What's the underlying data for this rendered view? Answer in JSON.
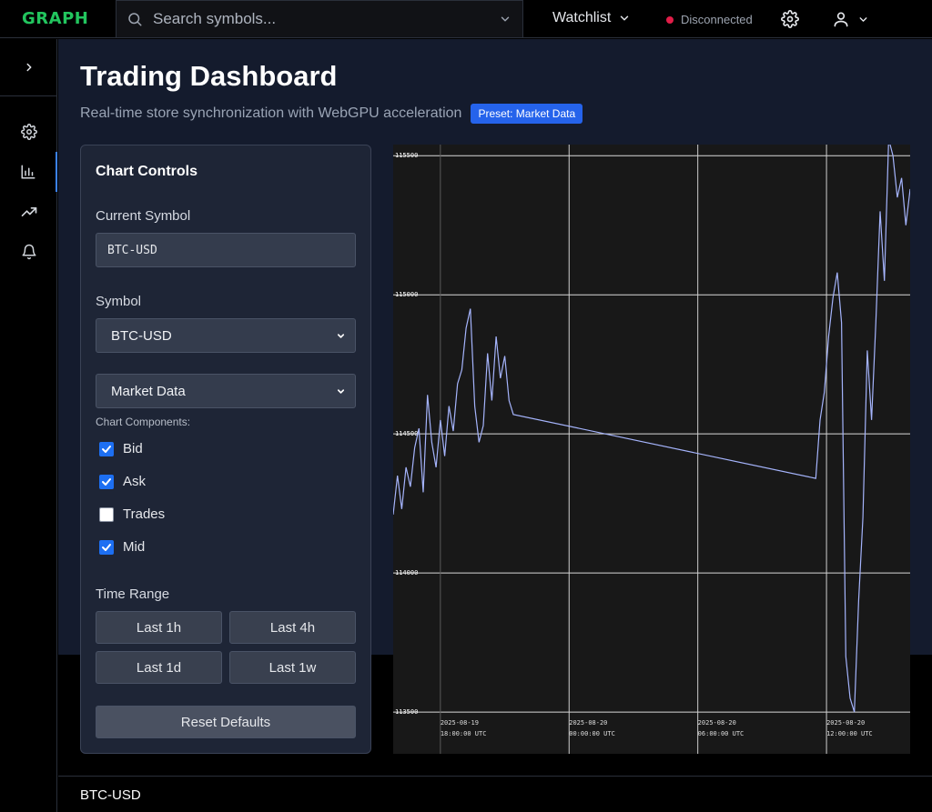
{
  "app": {
    "logo": "GRAPH"
  },
  "topbar": {
    "search_placeholder": "Search symbols...",
    "watchlist_label": "Watchlist",
    "connection_status": "Disconnected",
    "status_color": "#e11d48"
  },
  "page": {
    "title": "Trading Dashboard",
    "subtitle": "Real-time store synchronization with WebGPU acceleration",
    "preset_badge": "Preset: Market Data"
  },
  "controls": {
    "panel_title": "Chart Controls",
    "current_symbol_label": "Current Symbol",
    "current_symbol_value": "BTC-USD",
    "symbol_label": "Symbol",
    "symbol_selected": "BTC-USD",
    "preset_selected": "Market Data",
    "components_label": "Chart Components:",
    "components": [
      {
        "label": "Bid",
        "checked": true
      },
      {
        "label": "Ask",
        "checked": true
      },
      {
        "label": "Trades",
        "checked": false
      },
      {
        "label": "Mid",
        "checked": true
      }
    ],
    "time_range_label": "Time Range",
    "time_ranges": [
      "Last 1h",
      "Last 4h",
      "Last 1d",
      "Last 1w"
    ],
    "reset_label": "Reset Defaults"
  },
  "footer": {
    "symbol": "BTC-USD"
  },
  "chart_data": {
    "type": "line",
    "y_tick_labels": [
      "115500",
      "115000",
      "114500",
      "114000",
      "113500"
    ],
    "y_ticks": [
      115500,
      115000,
      114500,
      114000,
      113500
    ],
    "ylim": [
      113350,
      115540
    ],
    "x_tick_labels": [
      [
        "2025-08-19",
        "18:00:00 UTC"
      ],
      [
        "2025-08-20",
        "00:00:00 UTC"
      ],
      [
        "2025-08-20",
        "06:00:00 UTC"
      ],
      [
        "2025-08-20",
        "12:00:00 UTC"
      ]
    ],
    "x_ticks": [
      0,
      6,
      12,
      18
    ],
    "xlim": [
      -2.2,
      21.9
    ],
    "grid": true,
    "series": [
      {
        "color": "#a5b4fc",
        "x": [
          -2.2,
          -2.0,
          -1.8,
          -1.6,
          -1.4,
          -1.2,
          -1.0,
          -0.8,
          -0.6,
          -0.4,
          -0.2,
          0.0,
          0.2,
          0.4,
          0.6,
          0.8,
          1.0,
          1.2,
          1.4,
          1.6,
          1.8,
          2.0,
          2.2,
          2.4,
          2.6,
          2.8,
          3.0,
          3.2,
          3.4,
          17.5,
          17.7,
          17.9,
          18.1,
          18.3,
          18.5,
          18.7,
          18.9,
          19.1,
          19.3,
          19.5,
          19.7,
          19.9,
          20.1,
          20.3,
          20.5,
          20.7,
          20.9,
          21.1,
          21.3,
          21.5,
          21.7,
          21.9
        ],
        "values": [
          114210,
          114350,
          114230,
          114380,
          114310,
          114450,
          114520,
          114290,
          114640,
          114470,
          114380,
          114550,
          114420,
          114600,
          114510,
          114680,
          114730,
          114880,
          114950,
          114600,
          114470,
          114530,
          114790,
          114620,
          114850,
          114700,
          114780,
          114620,
          114570,
          114340,
          114550,
          114650,
          114850,
          114990,
          115080,
          114900,
          113700,
          113550,
          113500,
          113900,
          114200,
          114800,
          114550,
          114900,
          115300,
          115050,
          115560,
          115500,
          115350,
          115420,
          115250,
          115380
        ]
      }
    ]
  }
}
